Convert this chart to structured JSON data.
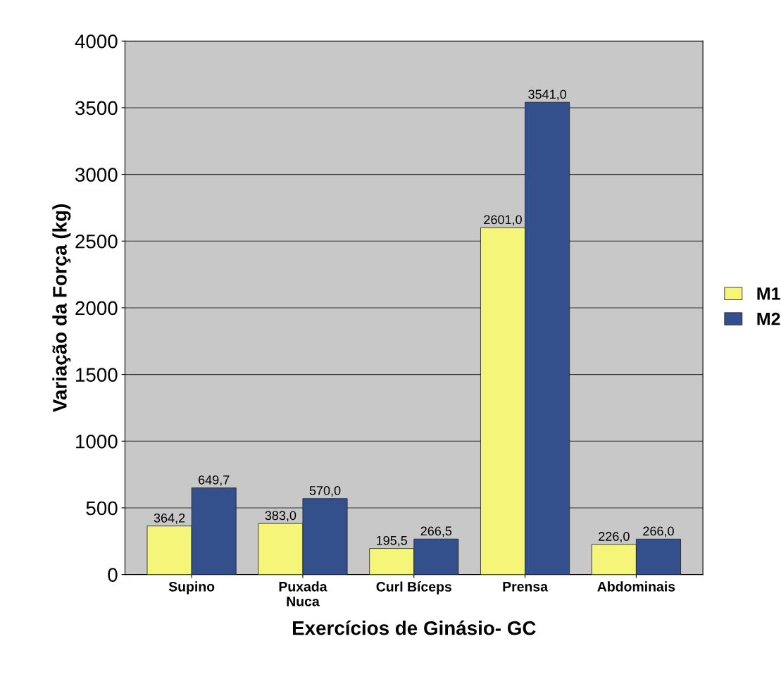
{
  "chart_data": {
    "type": "bar",
    "xlabel": "Exercícios de Ginásio- GC",
    "ylabel": "Variação da Força (kg)",
    "categories": [
      "Supino",
      "Puxada\nNuca",
      "Curl Bíceps",
      "Prensa",
      "Abdominais"
    ],
    "series": [
      {
        "name": "M1",
        "color": "#f5f57a",
        "values": [
          364.2,
          383.0,
          195.5,
          2601.0,
          226.0
        ],
        "value_labels": [
          "364,2",
          "383,0",
          "195,5",
          "2601,0",
          "226,0"
        ]
      },
      {
        "name": "M2",
        "color": "#34508c",
        "values": [
          649.7,
          570.0,
          266.5,
          3541.0,
          266.0
        ],
        "value_labels": [
          "649,7",
          "570,0",
          "266,5",
          "3541,0",
          "266,0"
        ]
      }
    ],
    "ylim": [
      0,
      4000
    ],
    "yticks": [
      0,
      500,
      1000,
      1500,
      2000,
      2500,
      3000,
      3500,
      4000
    ],
    "grid": "y",
    "legend": "right"
  }
}
